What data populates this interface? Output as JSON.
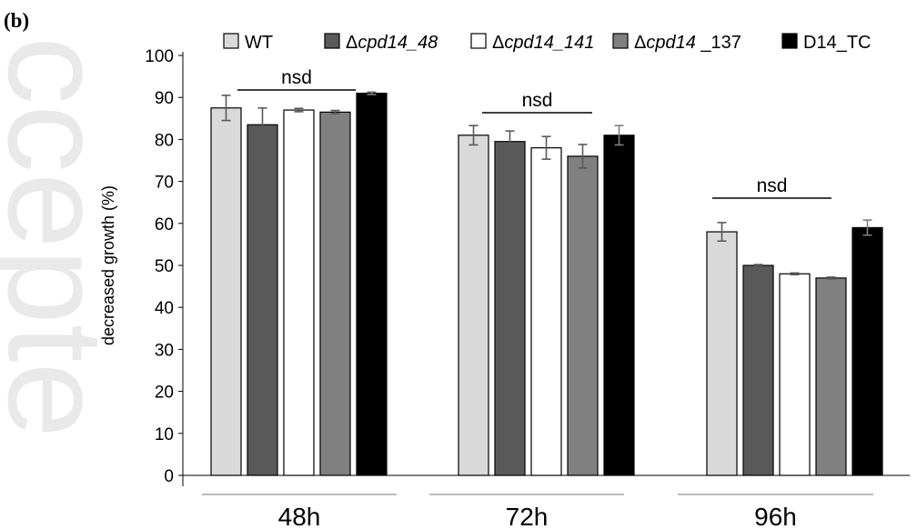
{
  "panel_label": "(b)",
  "watermark_text": "ccepte",
  "chart_data": {
    "type": "bar",
    "categories": [
      "48h",
      "72h",
      "96h"
    ],
    "ylabel": "decreased growth (%)",
    "xlabel": "",
    "ylim": [
      0,
      100
    ],
    "yticks": [
      0,
      10,
      20,
      30,
      40,
      50,
      60,
      70,
      80,
      90,
      100
    ],
    "grid": false,
    "legend_position": "top",
    "series": [
      {
        "name_prefix": "",
        "name_italic": "",
        "name_suffix": "WT",
        "color": "#d9d9d9",
        "values": [
          87.5,
          81,
          58
        ],
        "errors": [
          3,
          2.3,
          2.2
        ]
      },
      {
        "name_prefix": "Δ",
        "name_italic": "cpd14_48",
        "name_suffix": "",
        "color": "#595959",
        "values": [
          83.5,
          79.5,
          50
        ],
        "errors": [
          4,
          2.5,
          0.2
        ]
      },
      {
        "name_prefix": "Δ",
        "name_italic": "cpd14_141",
        "name_suffix": "",
        "color": "#ffffff",
        "values": [
          87,
          78,
          48
        ],
        "errors": [
          0.4,
          2.7,
          0.2
        ]
      },
      {
        "name_prefix": "Δ",
        "name_italic": "cpd14",
        "name_suffix": " _137",
        "color": "#808080",
        "values": [
          86.5,
          76,
          47
        ],
        "errors": [
          0.4,
          2.8,
          0.2
        ]
      },
      {
        "name_prefix": "",
        "name_italic": "",
        "name_suffix": "D14_TC",
        "color": "#000000",
        "values": [
          91,
          81,
          59
        ],
        "errors": [
          0.3,
          2.3,
          1.8
        ]
      }
    ],
    "annotations": [
      {
        "text": "nsd",
        "group": 0
      },
      {
        "text": "nsd",
        "group": 1
      },
      {
        "text": "nsd",
        "group": 2
      }
    ]
  }
}
